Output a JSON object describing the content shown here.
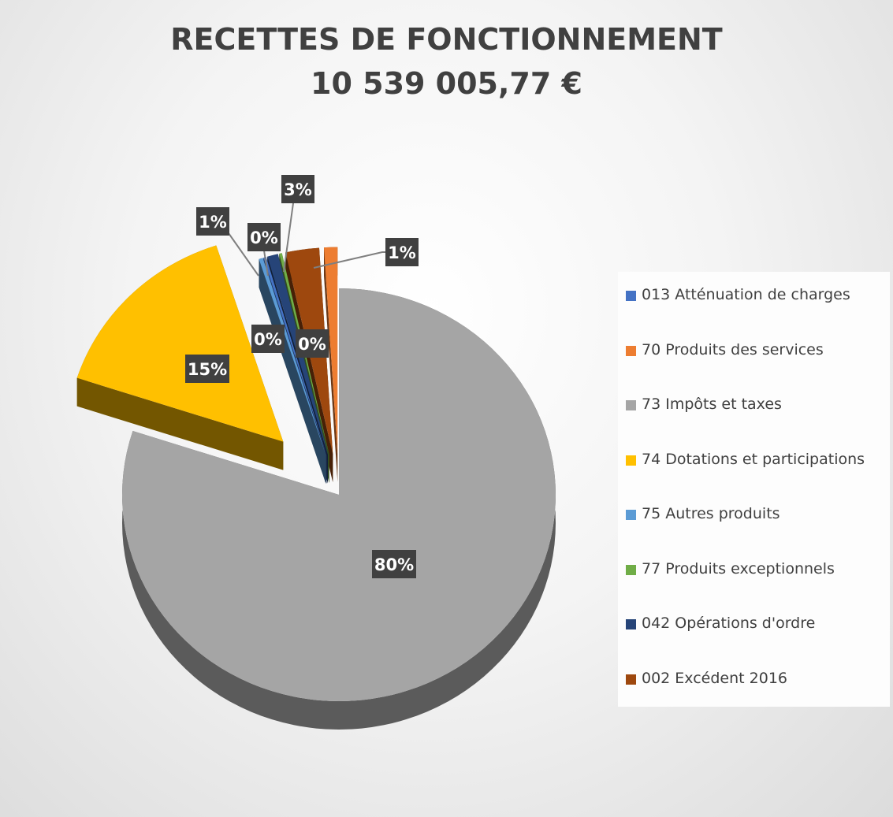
{
  "chart_data": {
    "type": "pie",
    "title": "RECETTES DE FONCTIONNEMENT",
    "subtitle": "10 539 005,77 €",
    "legend_position": "right",
    "slices": [
      {
        "name": "013 Atténuation de charges",
        "value": 0.2,
        "label": "0%",
        "color": "#4472C4"
      },
      {
        "name": "70 Produits des services",
        "value": 1.0,
        "label": "1%",
        "color": "#ED7D31"
      },
      {
        "name": "73 Impôts et taxes",
        "value": 80.0,
        "label": "80%",
        "color": "#A5A5A5"
      },
      {
        "name": "74 Dotations et participations",
        "value": 15.0,
        "label": "15%",
        "color": "#FFC000"
      },
      {
        "name": "75 Autres produits",
        "value": 0.3,
        "label": "0%",
        "color": "#5B9BD5"
      },
      {
        "name": "77 Produits exceptionnels",
        "value": 0.2,
        "label": "0%",
        "color": "#70AD47"
      },
      {
        "name": "042 Opérations d'ordre",
        "value": 0.8,
        "label": "1%",
        "color": "#264478"
      },
      {
        "name": "002 Excédent 2016",
        "value": 2.5,
        "label": "3%",
        "color": "#9E480E"
      }
    ]
  }
}
